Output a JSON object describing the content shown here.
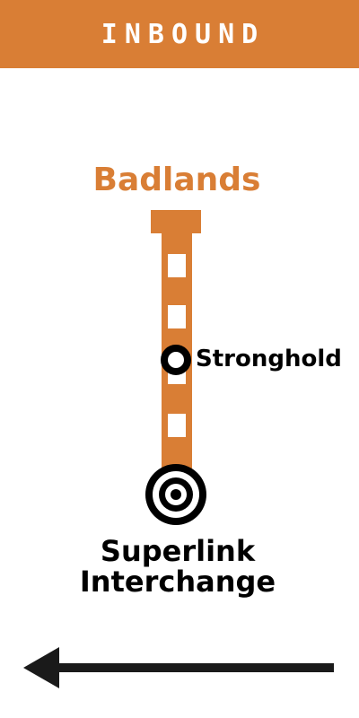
{
  "header": {
    "title": "INBOUND",
    "color": "#d97e35"
  },
  "route": {
    "line_name": "Badlands",
    "line_color": "#d97e35",
    "stops": [
      {
        "name": "Stronghold",
        "type": "station"
      },
      {
        "name_line1": "Superlink",
        "name_line2": "Interchange",
        "type": "interchange"
      }
    ]
  },
  "direction": {
    "arrow_icon": "arrow-left-icon"
  }
}
